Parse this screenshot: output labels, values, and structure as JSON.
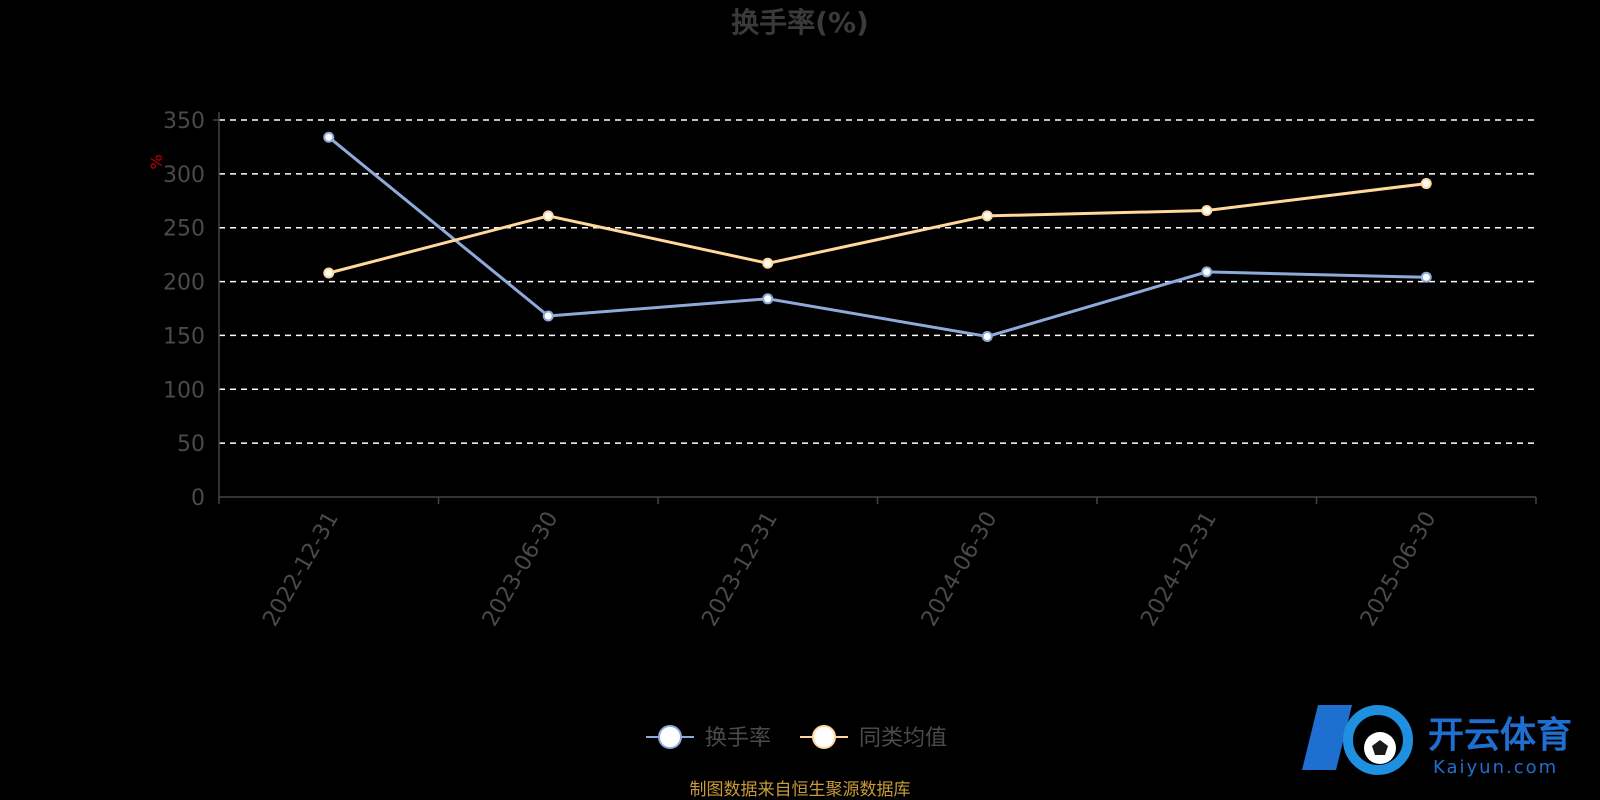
{
  "chart_data": {
    "type": "line",
    "title": "换手率(%)",
    "ylabel": "%",
    "ylim": [
      0,
      350
    ],
    "yticks": [
      0,
      50,
      100,
      150,
      200,
      250,
      300,
      350
    ],
    "categories": [
      "2022-12-31",
      "2023-06-30",
      "2023-12-31",
      "2024-06-30",
      "2024-12-31",
      "2025-06-30"
    ],
    "grid": true,
    "legend_position": "bottom",
    "series": [
      {
        "name": "换手率",
        "values": [
          334,
          168,
          184,
          149,
          209,
          204
        ],
        "color": "#8eaadb"
      },
      {
        "name": "同类均值",
        "values": [
          208,
          261,
          217,
          261,
          266,
          291
        ],
        "color": "#ffd89a"
      }
    ]
  },
  "footer": {
    "source": "制图数据来自恒生聚源数据库"
  },
  "watermark": {
    "brand_cn": "开云体育",
    "brand_en": "Kaiyun.com",
    "color": "#1f6fd0"
  }
}
